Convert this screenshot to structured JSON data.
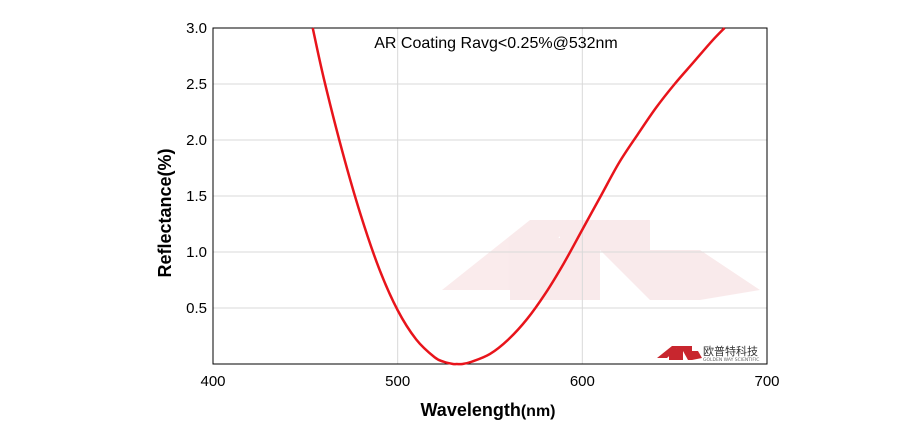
{
  "chart_data": {
    "type": "line",
    "title": "AR Coating Ravg<0.25%@532nm",
    "xlabel_main": "Wavelength",
    "xlabel_unit": "(nm)",
    "ylabel": "Reflectance(%)",
    "xlim": [
      400,
      700
    ],
    "ylim": [
      0,
      3.0
    ],
    "x_ticks": [
      400,
      500,
      600,
      700
    ],
    "y_ticks": [
      0.5,
      1.0,
      1.5,
      2.0,
      2.5,
      3.0
    ],
    "x_tick_labels": [
      "400",
      "500",
      "600",
      "700"
    ],
    "y_tick_labels": [
      "0.5",
      "1.0",
      "1.5",
      "2.0",
      "2.5",
      "3.0"
    ],
    "grid": true,
    "series": [
      {
        "color": "#e8141b",
        "x": [
          454,
          460,
          470,
          480,
          490,
          500,
          510,
          520,
          525,
          530,
          532,
          535,
          540,
          550,
          560,
          570,
          580,
          590,
          600,
          610,
          620,
          630,
          640,
          650,
          660,
          670,
          677
        ],
        "y": [
          3.0,
          2.55,
          1.9,
          1.33,
          0.85,
          0.48,
          0.22,
          0.06,
          0.02,
          0.0,
          0.0,
          0.0,
          0.02,
          0.09,
          0.22,
          0.4,
          0.63,
          0.9,
          1.2,
          1.5,
          1.8,
          2.05,
          2.29,
          2.5,
          2.69,
          2.88,
          3.0
        ]
      }
    ]
  },
  "watermark": {
    "brand_name": "欧普特科技",
    "brand_subtitle": "GOLDEN WAY SCIENTIFIC",
    "logo_color": "#c8262e"
  }
}
